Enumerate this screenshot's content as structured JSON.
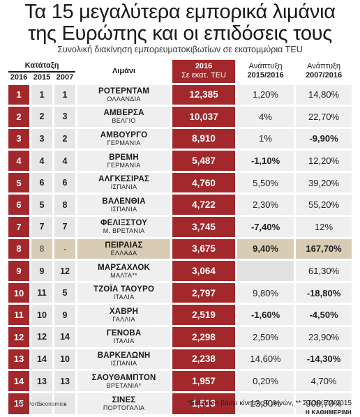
{
  "header": {
    "title_line1": "Τα 15 μεγαλύτερα εμπορικά λιμάνια",
    "title_line2": "της Ευρώπης και οι επιδόσεις τους",
    "subtitle": "Συνολική διακίνηση εμπορευματοκιβωτίων σε εκατομμύρια TEU"
  },
  "columns": {
    "rank_group": "Κατάταξη",
    "y2016": "2016",
    "y2015": "2015",
    "y2007": "2007",
    "port": "Λιμάνι",
    "teu_line1": "2016",
    "teu_line2": "Σε εκατ. TEU",
    "growth1_line1": "Ανάπτυξη",
    "growth1_line2": "2015/2016",
    "growth2_line1": "Ανάπτυξη",
    "growth2_line2": "2007/2016"
  },
  "rows": [
    {
      "r2016": "1",
      "r2015": "1",
      "r2007": "1",
      "port": "ΡΟΤΕΡΝΤΑΜ",
      "country": "ΟΛΛΑΝΔΙΑ",
      "teu": "12,385",
      "g1": "1,20%",
      "g2": "14,80%"
    },
    {
      "r2016": "2",
      "r2015": "2",
      "r2007": "3",
      "port": "ΑΜΒΕΡΣΑ",
      "country": "ΒΕΛΓΙΟ",
      "teu": "10,037",
      "g1": "4%",
      "g2": "22,70%"
    },
    {
      "r2016": "3",
      "r2015": "3",
      "r2007": "2",
      "port": "ΑΜΒΟΥΡΓΟ",
      "country": "ΓΕΡΜΑΝΙΑ",
      "teu": "8,910",
      "g1": "1%",
      "g2": "-9,90%"
    },
    {
      "r2016": "4",
      "r2015": "4",
      "r2007": "4",
      "port": "ΒΡΕΜΗ",
      "country": "ΓΕΡΜΑΝΙΑ",
      "teu": "5,487",
      "g1": "-1,10%",
      "g2": "12,20%"
    },
    {
      "r2016": "5",
      "r2015": "6",
      "r2007": "6",
      "port": "ΑΛΓΚΕΣΙΡΑΣ",
      "country": "ΙΣΠΑΝΙΑ",
      "teu": "4,760",
      "g1": "5,50%",
      "g2": "39,20%"
    },
    {
      "r2016": "6",
      "r2015": "5",
      "r2007": "8",
      "port": "ΒΑΛΕΝΘΙΑ",
      "country": "ΙΣΠΑΝΙΑ",
      "teu": "4,722",
      "g1": "2,30%",
      "g2": "55,20%"
    },
    {
      "r2016": "7",
      "r2015": "7",
      "r2007": "7",
      "port": "ΦΕΛΙΞΣΤΟΥ",
      "country": "Μ. ΒΡΕΤΑΝΙΑ",
      "teu": "3,745",
      "g1": "-7,40%",
      "g2": "12%"
    },
    {
      "r2016": "8",
      "r2015": "8",
      "r2007": "-",
      "port": "ΠΕΙΡΑΙΑΣ",
      "country": "ΕΛΛΑΔΑ",
      "teu": "3,675",
      "g1": "9,40%",
      "g2": "167,70%",
      "highlight": true
    },
    {
      "r2016": "9",
      "r2015": "9",
      "r2007": "12",
      "port": "ΜΑΡΣΑΧΛΟΚ",
      "country": "ΜΑΛΤΑ**",
      "teu": "3,064",
      "g1": "",
      "g2": "61,30%"
    },
    {
      "r2016": "10",
      "r2015": "11",
      "r2007": "5",
      "port": "ΤΖΟΪΑ ΤΑΟΥΡΟ",
      "country": "ΙΤΑΛΙΑ",
      "teu": "2,797",
      "g1": "9,80%",
      "g2": "-18,80%"
    },
    {
      "r2016": "11",
      "r2015": "10",
      "r2007": "9",
      "port": "ΧΑΒΡΗ",
      "country": "ΓΑΛΛΙΑ",
      "teu": "2,519",
      "g1": "-1,60%",
      "g2": "-4,50%"
    },
    {
      "r2016": "12",
      "r2015": "12",
      "r2007": "14",
      "port": "ΓΕΝΟΒΑ",
      "country": "ΙΤΑΛΙΑ",
      "teu": "2,298",
      "g1": "2,50%",
      "g2": "23,90%"
    },
    {
      "r2016": "13",
      "r2015": "14",
      "r2007": "10",
      "port": "ΒΑΡΚΕΛΩΝΗ",
      "country": "ΙΣΠΑΝΙΑ",
      "teu": "2,238",
      "g1": "14,60%",
      "g2": "-14,30%"
    },
    {
      "r2016": "14",
      "r2015": "13",
      "r2007": "13",
      "port": "ΣΑΟΥΘΑΜΠΤΟΝ",
      "country": "ΒΡΕΤΑΝΙΑ*",
      "teu": "1,957",
      "g1": "0,20%",
      "g2": "4,70%"
    },
    {
      "r2016": "15",
      "r2015": "-",
      "r2007": "-",
      "port": "ΣΙΝΕΣ",
      "country": "ΠΟΡΤΟΓΑΛΙΑ",
      "teu": "1,513",
      "g1": "13,80%",
      "g2": "908,70%"
    }
  ],
  "footer": {
    "source": "ΠΗΓΗ: PortEconomics",
    "note": "*Εκτίμηση βάσει κίνησης 9 μηνών, ** ΣΤΟΙΧΕΙΑ 2015",
    "brand": "Η ΚΑΘΗΜΕΡΙΝΗ"
  },
  "colors": {
    "accent_red": "#a3282c",
    "highlight_row": "#d8cdb4",
    "cell_grey": "#efefef"
  }
}
